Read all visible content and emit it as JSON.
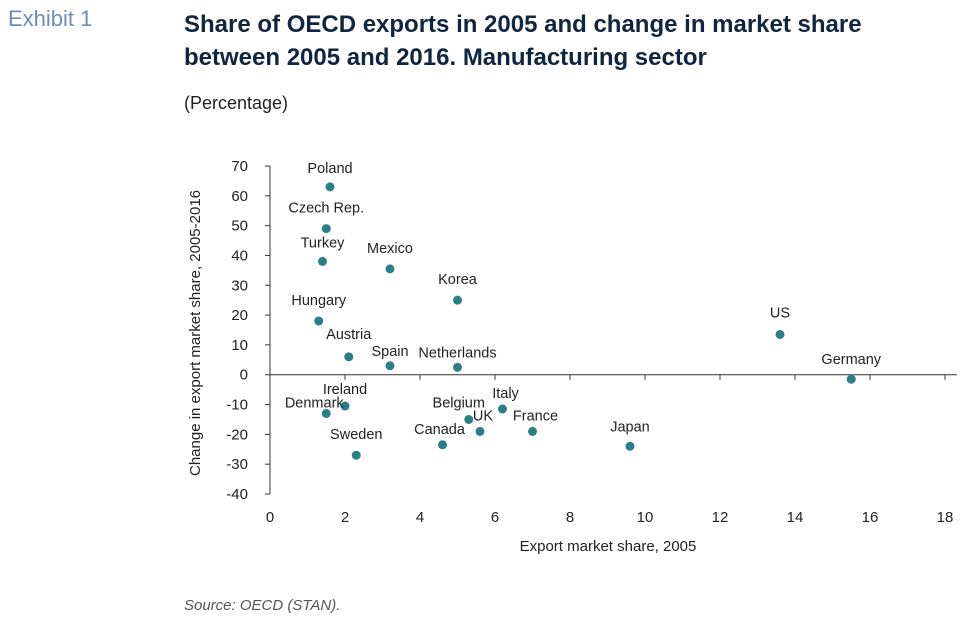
{
  "header": {
    "exhibit": "Exhibit 1",
    "title": "Share of OECD exports in 2005 and change in market share between 2005 and 2016. Manufacturing sector",
    "subtitle": "(Percentage)"
  },
  "footer": {
    "source": "Source: OECD (STAN)."
  },
  "chart_data": {
    "type": "scatter",
    "xlabel": "Export market share, 2005",
    "ylabel": "Change in export market share, 2005-2016",
    "xlim": [
      0,
      18
    ],
    "ylim": [
      -40,
      70
    ],
    "xticks": [
      0,
      2,
      4,
      6,
      8,
      10,
      12,
      14,
      16,
      18
    ],
    "yticks": [
      70,
      60,
      50,
      40,
      30,
      20,
      10,
      0,
      -10,
      -20,
      -30,
      -40
    ],
    "grid": false,
    "marker_color": "#2b7f86",
    "points": [
      {
        "label": "Poland",
        "x": 1.6,
        "y": 63
      },
      {
        "label": "Czech Rep.",
        "x": 1.5,
        "y": 49
      },
      {
        "label": "Turkey",
        "x": 1.4,
        "y": 38
      },
      {
        "label": "Mexico",
        "x": 3.2,
        "y": 35.5
      },
      {
        "label": "Korea",
        "x": 5.0,
        "y": 25
      },
      {
        "label": "Hungary",
        "x": 1.3,
        "y": 18
      },
      {
        "label": "Austria",
        "x": 2.1,
        "y": 6
      },
      {
        "label": "Spain",
        "x": 3.2,
        "y": 3
      },
      {
        "label": "Netherlands",
        "x": 5.0,
        "y": 2.5
      },
      {
        "label": "US",
        "x": 13.6,
        "y": 13.5
      },
      {
        "label": "Germany",
        "x": 15.5,
        "y": -1.5
      },
      {
        "label": "Ireland",
        "x": 2.0,
        "y": -10.5
      },
      {
        "label": "Denmark",
        "x": 1.5,
        "y": -13
      },
      {
        "label": "Italy",
        "x": 6.2,
        "y": -11.5
      },
      {
        "label": "Belgium",
        "x": 5.3,
        "y": -15
      },
      {
        "label": "UK",
        "x": 5.6,
        "y": -19
      },
      {
        "label": "France",
        "x": 7.0,
        "y": -19
      },
      {
        "label": "Canada",
        "x": 4.6,
        "y": -23.5
      },
      {
        "label": "Japan",
        "x": 9.6,
        "y": -24
      },
      {
        "label": "Sweden",
        "x": 2.3,
        "y": -27
      }
    ]
  }
}
